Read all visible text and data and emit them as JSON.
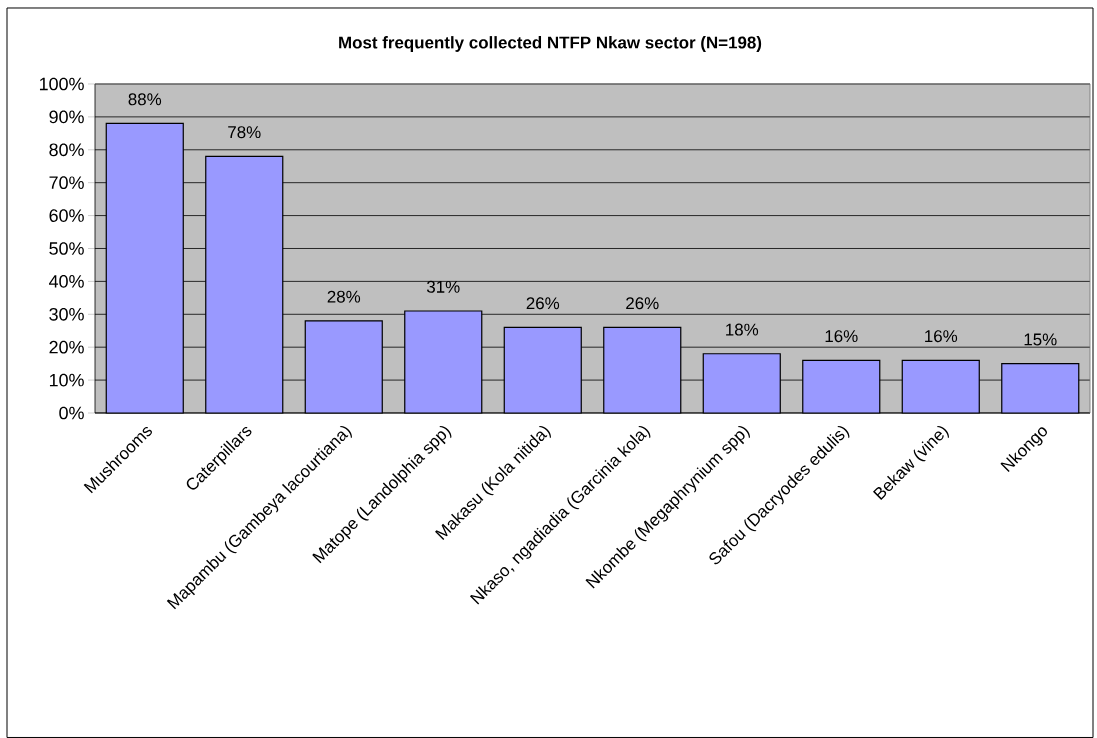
{
  "chart_data": {
    "type": "bar",
    "title": "Most frequently collected NTFP Nkaw sector (N=198)",
    "categories": [
      "Mushrooms",
      "Caterpillars",
      "Mapambu (Gambeya lacourtiana)",
      "Matope (Landolphia spp)",
      "Makasu (Kola nitida)",
      "Nkaso, ngadiadia (Garcinia kola)",
      "Nkombe (Megaphrynium spp)",
      "Safou (Dacryodes edulis)",
      "Bekaw (vine)",
      "Nkongo"
    ],
    "values": [
      88,
      78,
      28,
      31,
      26,
      26,
      18,
      16,
      16,
      15
    ],
    "value_labels": [
      "88%",
      "78%",
      "28%",
      "31%",
      "26%",
      "26%",
      "18%",
      "16%",
      "16%",
      "15%"
    ],
    "color": "#9999ff",
    "ylim": [
      0,
      100
    ],
    "yticks": [
      {
        "value": 0,
        "label": "0%"
      },
      {
        "value": 10,
        "label": "10%"
      },
      {
        "value": 20,
        "label": "20%"
      },
      {
        "value": 30,
        "label": "30%"
      },
      {
        "value": 40,
        "label": "40%"
      },
      {
        "value": 50,
        "label": "50%"
      },
      {
        "value": 60,
        "label": "60%"
      },
      {
        "value": 70,
        "label": "70%"
      },
      {
        "value": 80,
        "label": "80%"
      },
      {
        "value": 90,
        "label": "90%"
      },
      {
        "value": 100,
        "label": "100%"
      }
    ],
    "grid": "y"
  }
}
